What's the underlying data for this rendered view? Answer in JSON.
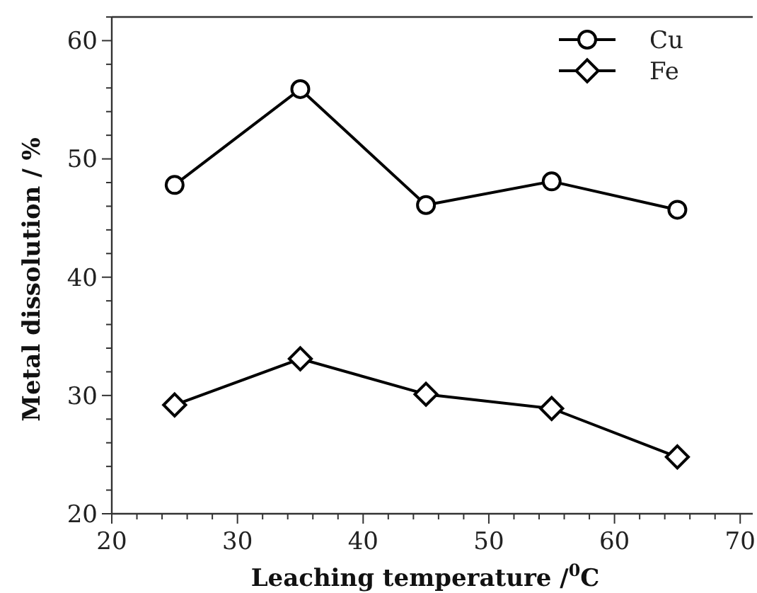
{
  "chart_data": {
    "type": "line",
    "xlabel": "Leaching temperature /$^{0}$C",
    "ylabel": "Metal dissolution / %",
    "x": [
      25,
      35,
      45,
      55,
      65
    ],
    "series": [
      {
        "name": "Cu",
        "color": "#000000",
        "marker": "circle",
        "values": [
          47.8,
          55.9,
          46.1,
          48.1,
          45.7
        ]
      },
      {
        "name": "Fe",
        "color": "#000000",
        "marker": "diamond",
        "values": [
          29.2,
          33.1,
          30.1,
          28.9,
          24.8
        ]
      }
    ],
    "xlim": [
      20,
      71
    ],
    "ylim": [
      20,
      62
    ],
    "xticks": [
      20,
      {
        "value": 22,
        "label": null
      },
      {
        "value": 24,
        "label": null
      },
      {
        "value": 26,
        "label": null
      },
      {
        "value": 28,
        "label": null
      },
      30,
      {
        "value": 32,
        "label": null
      },
      {
        "value": 34,
        "label": null
      },
      {
        "value": 36,
        "label": null
      },
      {
        "value": 38,
        "label": null
      },
      40,
      {
        "value": 42,
        "label": null
      },
      {
        "value": 44,
        "label": null
      },
      {
        "value": 46,
        "label": null
      },
      {
        "value": 48,
        "label": null
      },
      50,
      {
        "value": 52,
        "label": null
      },
      {
        "value": 54,
        "label": null
      },
      {
        "value": 56,
        "label": null
      },
      {
        "value": 58,
        "label": null
      },
      60,
      {
        "value": 62,
        "label": null
      },
      {
        "value": 64,
        "label": null
      },
      {
        "value": 66,
        "label": null
      },
      {
        "value": 68,
        "label": null
      },
      70
    ],
    "yticks": [
      20,
      {
        "value": 22,
        "label": null
      },
      {
        "value": 24,
        "label": null
      },
      {
        "value": 26,
        "label": null
      },
      {
        "value": 28,
        "label": null
      },
      30,
      {
        "value": 32,
        "label": null
      },
      {
        "value": 34,
        "label": null
      },
      {
        "value": 36,
        "label": null
      },
      {
        "value": 38,
        "label": null
      },
      40,
      {
        "value": 42,
        "label": null
      },
      {
        "value": 44,
        "label": null
      },
      {
        "value": 46,
        "label": null
      },
      {
        "value": 48,
        "label": null
      },
      50,
      {
        "value": 52,
        "label": null
      },
      {
        "value": 54,
        "label": null
      },
      {
        "value": 56,
        "label": null
      },
      {
        "value": 58,
        "label": null
      },
      60,
      {
        "value": 62,
        "label": null
      }
    ],
    "grid": false,
    "legend": "top right",
    "line_style": "solid"
  }
}
